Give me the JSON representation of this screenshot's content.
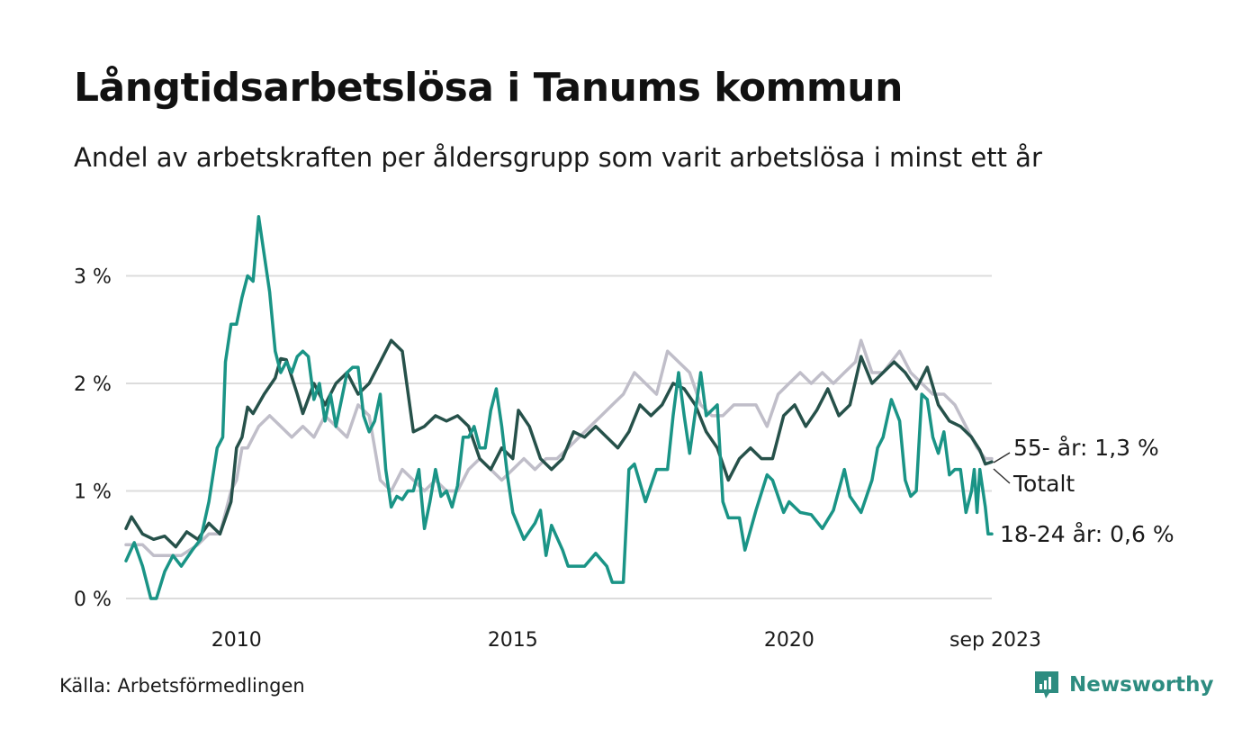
{
  "title": "Långtidsarbetslösa i Tanums kommun",
  "subtitle": "Andel av arbetskraften per åldersgrupp som varit arbetslösa i minst ett år",
  "source": "Källa: Arbetsförmedlingen",
  "brand": "Newsworthy",
  "colors": {
    "young": "#1a9486",
    "total": "#26514a",
    "older": "#c0bec9",
    "grid": "#dcdcdc",
    "brand": "#2d8c80"
  },
  "chart_data": {
    "type": "line",
    "title": "Långtidsarbetslösa i Tanums kommun",
    "xlabel": "",
    "ylabel": "",
    "xlim": [
      2008.0,
      2023.667
    ],
    "ylim": [
      0,
      3.6
    ],
    "y_ticks": [
      {
        "value": 0,
        "label": "0 %"
      },
      {
        "value": 1,
        "label": "1 %"
      },
      {
        "value": 2,
        "label": "2 %"
      },
      {
        "value": 3,
        "label": "3 %"
      }
    ],
    "x_ticks": [
      {
        "value": 2010,
        "label": "2010"
      },
      {
        "value": 2015,
        "label": "2015"
      },
      {
        "value": 2020,
        "label": "2020"
      },
      {
        "value": 2023.667,
        "label": "sep 2023"
      }
    ],
    "series": [
      {
        "name": "55- år",
        "key": "older",
        "end_label": "55- år: 1,3 %",
        "points": [
          [
            2008.0,
            0.5
          ],
          [
            2008.3,
            0.5
          ],
          [
            2008.5,
            0.4
          ],
          [
            2008.8,
            0.4
          ],
          [
            2009.0,
            0.4
          ],
          [
            2009.3,
            0.5
          ],
          [
            2009.5,
            0.6
          ],
          [
            2009.7,
            0.6
          ],
          [
            2009.9,
            1.0
          ],
          [
            2010.0,
            1.1
          ],
          [
            2010.1,
            1.4
          ],
          [
            2010.2,
            1.4
          ],
          [
            2010.4,
            1.6
          ],
          [
            2010.6,
            1.7
          ],
          [
            2010.8,
            1.6
          ],
          [
            2011.0,
            1.5
          ],
          [
            2011.2,
            1.6
          ],
          [
            2011.4,
            1.5
          ],
          [
            2011.6,
            1.7
          ],
          [
            2011.8,
            1.6
          ],
          [
            2012.0,
            1.5
          ],
          [
            2012.2,
            1.8
          ],
          [
            2012.4,
            1.7
          ],
          [
            2012.6,
            1.1
          ],
          [
            2012.8,
            1.0
          ],
          [
            2013.0,
            1.2
          ],
          [
            2013.2,
            1.1
          ],
          [
            2013.4,
            1.0
          ],
          [
            2013.6,
            1.1
          ],
          [
            2013.8,
            1.0
          ],
          [
            2014.0,
            1.0
          ],
          [
            2014.2,
            1.2
          ],
          [
            2014.4,
            1.3
          ],
          [
            2014.6,
            1.2
          ],
          [
            2014.8,
            1.1
          ],
          [
            2015.0,
            1.2
          ],
          [
            2015.2,
            1.3
          ],
          [
            2015.4,
            1.2
          ],
          [
            2015.6,
            1.3
          ],
          [
            2015.8,
            1.3
          ],
          [
            2016.0,
            1.4
          ],
          [
            2016.2,
            1.5
          ],
          [
            2016.4,
            1.6
          ],
          [
            2016.6,
            1.7
          ],
          [
            2016.8,
            1.8
          ],
          [
            2017.0,
            1.9
          ],
          [
            2017.2,
            2.1
          ],
          [
            2017.4,
            2.0
          ],
          [
            2017.6,
            1.9
          ],
          [
            2017.8,
            2.3
          ],
          [
            2018.0,
            2.2
          ],
          [
            2018.2,
            2.1
          ],
          [
            2018.4,
            1.8
          ],
          [
            2018.6,
            1.7
          ],
          [
            2018.8,
            1.7
          ],
          [
            2019.0,
            1.8
          ],
          [
            2019.2,
            1.8
          ],
          [
            2019.4,
            1.8
          ],
          [
            2019.6,
            1.6
          ],
          [
            2019.8,
            1.9
          ],
          [
            2020.0,
            2.0
          ],
          [
            2020.2,
            2.1
          ],
          [
            2020.4,
            2.0
          ],
          [
            2020.6,
            2.1
          ],
          [
            2020.8,
            2.0
          ],
          [
            2021.0,
            2.1
          ],
          [
            2021.2,
            2.2
          ],
          [
            2021.3,
            2.4
          ],
          [
            2021.5,
            2.1
          ],
          [
            2021.7,
            2.1
          ],
          [
            2022.0,
            2.3
          ],
          [
            2022.2,
            2.1
          ],
          [
            2022.4,
            2.0
          ],
          [
            2022.6,
            1.9
          ],
          [
            2022.8,
            1.9
          ],
          [
            2023.0,
            1.8
          ],
          [
            2023.2,
            1.6
          ],
          [
            2023.4,
            1.4
          ],
          [
            2023.55,
            1.3
          ],
          [
            2023.667,
            1.3
          ]
        ]
      },
      {
        "name": "Totalt",
        "key": "total",
        "end_label": "Totalt",
        "points": [
          [
            2008.0,
            0.65
          ],
          [
            2008.1,
            0.76
          ],
          [
            2008.3,
            0.6
          ],
          [
            2008.5,
            0.55
          ],
          [
            2008.7,
            0.58
          ],
          [
            2008.9,
            0.48
          ],
          [
            2009.1,
            0.62
          ],
          [
            2009.3,
            0.55
          ],
          [
            2009.5,
            0.7
          ],
          [
            2009.7,
            0.6
          ],
          [
            2009.9,
            0.9
          ],
          [
            2010.0,
            1.4
          ],
          [
            2010.1,
            1.5
          ],
          [
            2010.2,
            1.78
          ],
          [
            2010.3,
            1.72
          ],
          [
            2010.5,
            1.9
          ],
          [
            2010.7,
            2.05
          ],
          [
            2010.8,
            2.23
          ],
          [
            2010.9,
            2.22
          ],
          [
            2011.1,
            1.9
          ],
          [
            2011.2,
            1.72
          ],
          [
            2011.4,
            2.0
          ],
          [
            2011.6,
            1.8
          ],
          [
            2011.8,
            2.0
          ],
          [
            2012.0,
            2.1
          ],
          [
            2012.2,
            1.9
          ],
          [
            2012.4,
            2.0
          ],
          [
            2012.6,
            2.2
          ],
          [
            2012.8,
            2.4
          ],
          [
            2013.0,
            2.3
          ],
          [
            2013.2,
            1.55
          ],
          [
            2013.4,
            1.6
          ],
          [
            2013.6,
            1.7
          ],
          [
            2013.8,
            1.65
          ],
          [
            2014.0,
            1.7
          ],
          [
            2014.2,
            1.6
          ],
          [
            2014.4,
            1.3
          ],
          [
            2014.6,
            1.2
          ],
          [
            2014.8,
            1.4
          ],
          [
            2015.0,
            1.3
          ],
          [
            2015.1,
            1.75
          ],
          [
            2015.3,
            1.6
          ],
          [
            2015.5,
            1.3
          ],
          [
            2015.7,
            1.2
          ],
          [
            2015.9,
            1.3
          ],
          [
            2016.1,
            1.55
          ],
          [
            2016.3,
            1.5
          ],
          [
            2016.5,
            1.6
          ],
          [
            2016.7,
            1.5
          ],
          [
            2016.9,
            1.4
          ],
          [
            2017.1,
            1.55
          ],
          [
            2017.3,
            1.8
          ],
          [
            2017.5,
            1.7
          ],
          [
            2017.7,
            1.8
          ],
          [
            2017.9,
            2.0
          ],
          [
            2018.1,
            1.95
          ],
          [
            2018.3,
            1.8
          ],
          [
            2018.5,
            1.55
          ],
          [
            2018.7,
            1.4
          ],
          [
            2018.9,
            1.1
          ],
          [
            2019.1,
            1.3
          ],
          [
            2019.3,
            1.4
          ],
          [
            2019.5,
            1.3
          ],
          [
            2019.7,
            1.3
          ],
          [
            2019.9,
            1.7
          ],
          [
            2020.1,
            1.8
          ],
          [
            2020.3,
            1.6
          ],
          [
            2020.5,
            1.75
          ],
          [
            2020.7,
            1.95
          ],
          [
            2020.9,
            1.7
          ],
          [
            2021.1,
            1.8
          ],
          [
            2021.3,
            2.25
          ],
          [
            2021.5,
            2.0
          ],
          [
            2021.7,
            2.1
          ],
          [
            2021.9,
            2.2
          ],
          [
            2022.1,
            2.1
          ],
          [
            2022.3,
            1.95
          ],
          [
            2022.5,
            2.15
          ],
          [
            2022.7,
            1.8
          ],
          [
            2022.9,
            1.65
          ],
          [
            2023.1,
            1.6
          ],
          [
            2023.3,
            1.5
          ],
          [
            2023.45,
            1.38
          ],
          [
            2023.55,
            1.25
          ],
          [
            2023.667,
            1.27
          ]
        ]
      },
      {
        "name": "18-24 år",
        "key": "young",
        "end_label": "18-24 år: 0,6 %",
        "points": [
          [
            2008.0,
            0.35
          ],
          [
            2008.15,
            0.52
          ],
          [
            2008.3,
            0.3
          ],
          [
            2008.45,
            0.0
          ],
          [
            2008.55,
            0.0
          ],
          [
            2008.7,
            0.25
          ],
          [
            2008.85,
            0.4
          ],
          [
            2009.0,
            0.3
          ],
          [
            2009.2,
            0.45
          ],
          [
            2009.35,
            0.55
          ],
          [
            2009.5,
            0.9
          ],
          [
            2009.65,
            1.4
          ],
          [
            2009.75,
            1.5
          ],
          [
            2009.8,
            2.2
          ],
          [
            2009.9,
            2.55
          ],
          [
            2010.0,
            2.55
          ],
          [
            2010.1,
            2.8
          ],
          [
            2010.2,
            3.0
          ],
          [
            2010.3,
            2.95
          ],
          [
            2010.4,
            3.55
          ],
          [
            2010.5,
            3.2
          ],
          [
            2010.6,
            2.85
          ],
          [
            2010.7,
            2.3
          ],
          [
            2010.8,
            2.1
          ],
          [
            2010.9,
            2.2
          ],
          [
            2011.0,
            2.1
          ],
          [
            2011.1,
            2.25
          ],
          [
            2011.2,
            2.3
          ],
          [
            2011.3,
            2.25
          ],
          [
            2011.4,
            1.85
          ],
          [
            2011.5,
            2.0
          ],
          [
            2011.6,
            1.65
          ],
          [
            2011.7,
            1.9
          ],
          [
            2011.8,
            1.6
          ],
          [
            2011.9,
            1.85
          ],
          [
            2012.0,
            2.1
          ],
          [
            2012.1,
            2.15
          ],
          [
            2012.2,
            2.15
          ],
          [
            2012.3,
            1.7
          ],
          [
            2012.4,
            1.55
          ],
          [
            2012.5,
            1.65
          ],
          [
            2012.6,
            1.9
          ],
          [
            2012.7,
            1.2
          ],
          [
            2012.8,
            0.85
          ],
          [
            2012.9,
            0.95
          ],
          [
            2013.0,
            0.92
          ],
          [
            2013.1,
            1.0
          ],
          [
            2013.2,
            1.0
          ],
          [
            2013.3,
            1.2
          ],
          [
            2013.4,
            0.65
          ],
          [
            2013.5,
            0.9
          ],
          [
            2013.6,
            1.2
          ],
          [
            2013.7,
            0.95
          ],
          [
            2013.8,
            1.0
          ],
          [
            2013.9,
            0.85
          ],
          [
            2014.0,
            1.05
          ],
          [
            2014.1,
            1.5
          ],
          [
            2014.2,
            1.5
          ],
          [
            2014.3,
            1.6
          ],
          [
            2014.4,
            1.4
          ],
          [
            2014.5,
            1.4
          ],
          [
            2014.6,
            1.75
          ],
          [
            2014.7,
            1.95
          ],
          [
            2014.8,
            1.6
          ],
          [
            2014.9,
            1.15
          ],
          [
            2015.0,
            0.8
          ],
          [
            2015.2,
            0.55
          ],
          [
            2015.4,
            0.7
          ],
          [
            2015.5,
            0.82
          ],
          [
            2015.6,
            0.4
          ],
          [
            2015.7,
            0.68
          ],
          [
            2015.9,
            0.45
          ],
          [
            2016.0,
            0.3
          ],
          [
            2016.3,
            0.3
          ],
          [
            2016.5,
            0.42
          ],
          [
            2016.7,
            0.3
          ],
          [
            2016.8,
            0.15
          ],
          [
            2017.0,
            0.15
          ],
          [
            2017.1,
            1.2
          ],
          [
            2017.2,
            1.25
          ],
          [
            2017.4,
            0.9
          ],
          [
            2017.6,
            1.2
          ],
          [
            2017.8,
            1.2
          ],
          [
            2017.9,
            1.7
          ],
          [
            2018.0,
            2.1
          ],
          [
            2018.1,
            1.7
          ],
          [
            2018.2,
            1.35
          ],
          [
            2018.4,
            2.1
          ],
          [
            2018.5,
            1.7
          ],
          [
            2018.7,
            1.8
          ],
          [
            2018.8,
            0.9
          ],
          [
            2018.9,
            0.75
          ],
          [
            2019.1,
            0.75
          ],
          [
            2019.2,
            0.45
          ],
          [
            2019.4,
            0.82
          ],
          [
            2019.6,
            1.15
          ],
          [
            2019.7,
            1.1
          ],
          [
            2019.9,
            0.8
          ],
          [
            2020.0,
            0.9
          ],
          [
            2020.2,
            0.8
          ],
          [
            2020.4,
            0.78
          ],
          [
            2020.6,
            0.65
          ],
          [
            2020.8,
            0.82
          ],
          [
            2021.0,
            1.2
          ],
          [
            2021.1,
            0.95
          ],
          [
            2021.3,
            0.8
          ],
          [
            2021.5,
            1.1
          ],
          [
            2021.6,
            1.4
          ],
          [
            2021.7,
            1.5
          ],
          [
            2021.85,
            1.85
          ],
          [
            2022.0,
            1.65
          ],
          [
            2022.1,
            1.1
          ],
          [
            2022.2,
            0.95
          ],
          [
            2022.3,
            1.0
          ],
          [
            2022.4,
            1.9
          ],
          [
            2022.5,
            1.85
          ],
          [
            2022.6,
            1.5
          ],
          [
            2022.7,
            1.35
          ],
          [
            2022.8,
            1.55
          ],
          [
            2022.9,
            1.15
          ],
          [
            2023.0,
            1.2
          ],
          [
            2023.1,
            1.2
          ],
          [
            2023.2,
            0.8
          ],
          [
            2023.3,
            1.0
          ],
          [
            2023.35,
            1.2
          ],
          [
            2023.4,
            0.8
          ],
          [
            2023.45,
            1.2
          ],
          [
            2023.55,
            0.85
          ],
          [
            2023.6,
            0.6
          ],
          [
            2023.667,
            0.6
          ]
        ]
      }
    ]
  }
}
